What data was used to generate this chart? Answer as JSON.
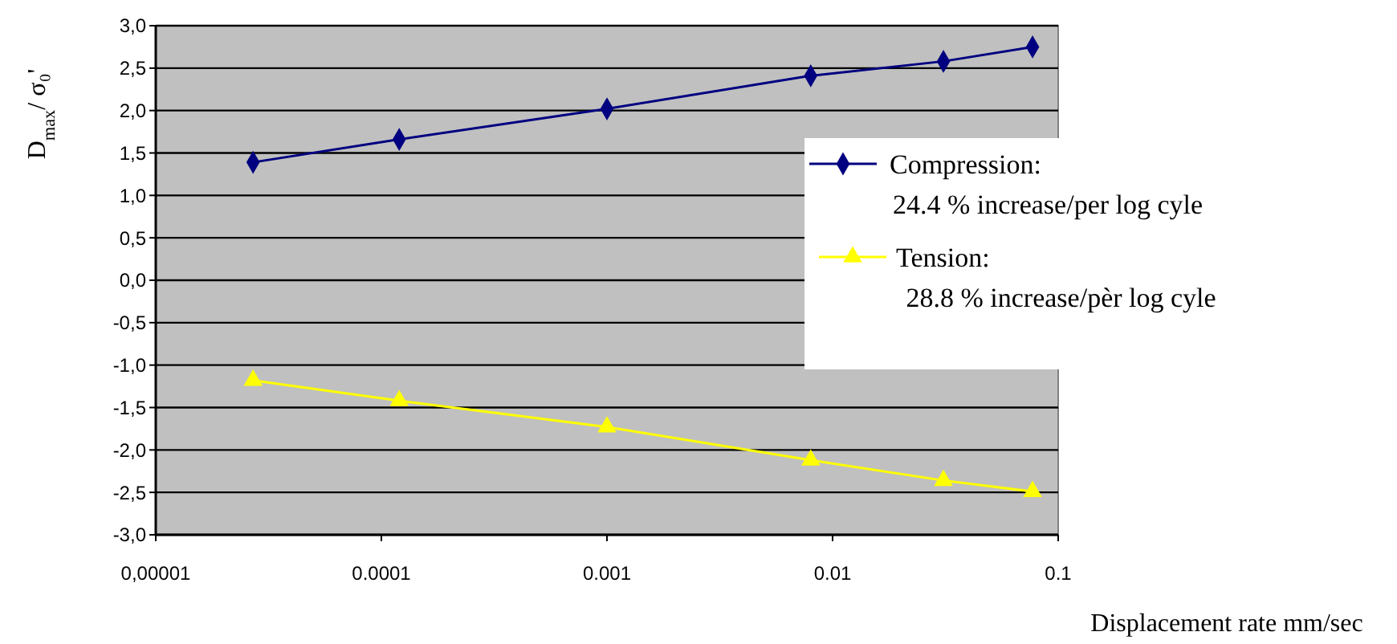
{
  "chart_data": {
    "type": "line",
    "ylabel": "D$_{max}$/ σ₀'",
    "xlabel": "Displacement rate mm/sec",
    "log": "x",
    "grid": "y",
    "legend": "right",
    "xlim": [
      1e-05,
      0.1
    ],
    "xticks": [
      {
        "value": 1e-05,
        "label": "0,00001"
      },
      0.0001,
      0.001,
      0.01,
      0.1
    ],
    "ylim": [
      -3,
      3
    ],
    "yticks": [
      {
        "value": -3,
        "label": "-3,0"
      },
      {
        "value": -2.5,
        "label": "-2,5"
      },
      {
        "value": -2,
        "label": "-2,0"
      },
      {
        "value": -1.5,
        "label": "-1,5"
      },
      {
        "value": -1,
        "label": "-1,0"
      },
      {
        "value": -0.5,
        "label": "-0,5"
      },
      {
        "value": 0,
        "label": "0,0"
      },
      {
        "value": 0.5,
        "label": "0,5"
      },
      {
        "value": 1,
        "label": "1,0"
      },
      {
        "value": 1.5,
        "label": "1,5"
      },
      {
        "value": 2,
        "label": "2,0"
      },
      {
        "value": 2.5,
        "label": "2,5"
      },
      {
        "value": 3,
        "label": "3,0"
      }
    ],
    "x": [
      2.7e-05,
      0.00012,
      0.001,
      0.008,
      0.031,
      0.077
    ],
    "series": [
      {
        "name": "Compression:\n24.4 % increase/per log cyle",
        "color": "#000080",
        "marker": "diamond",
        "values": [
          1.39,
          1.66,
          2.02,
          2.41,
          2.58,
          2.75
        ]
      },
      {
        "name": "Tension:\n 28.8 % increase/pèr log cyle",
        "color": "#ffff00",
        "marker": "triangle",
        "values": [
          -1.18,
          -1.42,
          -1.73,
          -2.12,
          -2.36,
          -2.49
        ]
      }
    ]
  }
}
